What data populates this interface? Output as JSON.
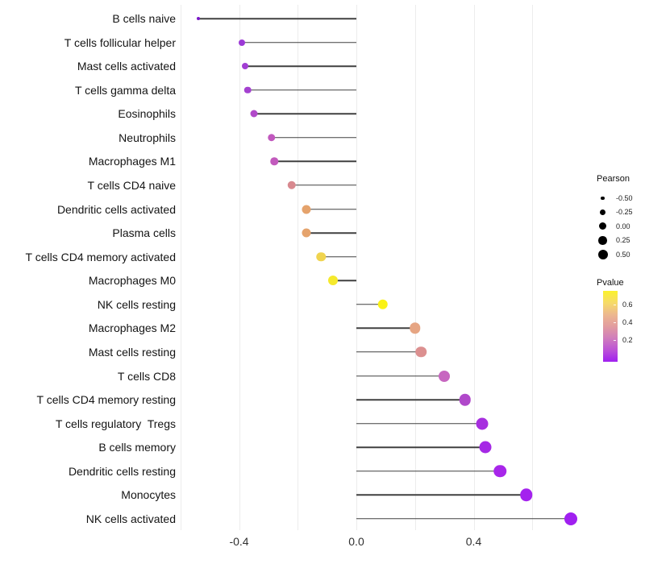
{
  "chart": {
    "title": "",
    "x_axis": {
      "tick_labels": [
        "-0.4",
        "0.0",
        "0.4"
      ],
      "tick_values": [
        -0.4,
        0.0,
        0.4
      ],
      "gridline_values": [
        -0.6,
        -0.4,
        -0.2,
        0.0,
        0.2,
        0.4,
        0.6
      ],
      "range": [
        -0.62,
        0.77
      ],
      "grid": "on"
    }
  },
  "chart_data": {
    "type": "lollipop",
    "orientation": "horizontal",
    "baseline": 0,
    "xlabel": "",
    "ylabel": "",
    "size_encodes": "Pearson correlation",
    "color_encodes": "Pvalue (yellow = high p, purple = low p)",
    "categories": [
      "B cells naive",
      "T cells follicular helper",
      "Mast cells activated",
      "T cells gamma delta",
      "Eosinophils",
      "Neutrophils",
      "Macrophages M1",
      "T cells CD4 naive",
      "Dendritic cells activated",
      "Plasma cells",
      "T cells CD4 memory activated",
      "Macrophages M0",
      "NK cells resting",
      "Macrophages M2",
      "Mast cells resting",
      "T cells CD8",
      "T cells CD4 memory resting",
      "T cells regulatory  Tregs",
      "B cells memory",
      "Dendritic cells resting",
      "Monocytes",
      "NK cells activated"
    ],
    "values": [
      -0.54,
      -0.39,
      -0.38,
      -0.37,
      -0.35,
      -0.29,
      -0.28,
      -0.22,
      -0.17,
      -0.17,
      -0.12,
      -0.08,
      0.09,
      0.2,
      0.22,
      0.3,
      0.37,
      0.43,
      0.44,
      0.49,
      0.58,
      0.73
    ],
    "point_colors": [
      "#7A18C8",
      "#9C3AD6",
      "#A13ED3",
      "#A441D0",
      "#B149C9",
      "#C158BE",
      "#C25ABD",
      "#D8898F",
      "#E5A36C",
      "#E5A36C",
      "#F0D44F",
      "#F5E92C",
      "#FAF216",
      "#E6A583",
      "#DC9090",
      "#C766C0",
      "#B048CA",
      "#A72FDF",
      "#A529E5",
      "#A826EA",
      "#A422EE",
      "#A020F0"
    ],
    "point_diameters": [
      4,
      8,
      8,
      8.5,
      9,
      9.5,
      9.5,
      10.5,
      11,
      11,
      11.5,
      12,
      12.5,
      13.5,
      13.5,
      14,
      14.5,
      15,
      15,
      15.5,
      15.5,
      16
    ]
  },
  "legend_pearson": {
    "title": "Pearson",
    "entries": [
      {
        "label": "-0.50",
        "diameter": 4.5
      },
      {
        "label": "-0.25",
        "diameter": 7
      },
      {
        "label": "0.00",
        "diameter": 9
      },
      {
        "label": "0.25",
        "diameter": 10.5
      },
      {
        "label": "0.50",
        "diameter": 12
      }
    ]
  },
  "legend_pvalue": {
    "title": "Pvalue",
    "tick_labels": [
      "0.6",
      "0.4",
      "0.2"
    ],
    "gradient_stops": [
      "#FBF22C",
      "#F6DB68",
      "#EDB88E",
      "#E29C9F",
      "#D07DBC",
      "#BC53D6",
      "#A020F0"
    ]
  },
  "colors": {
    "background": "#FFFFFF",
    "gridline": "#ECECEC",
    "stem": "#404040",
    "label_text": "#141414"
  }
}
